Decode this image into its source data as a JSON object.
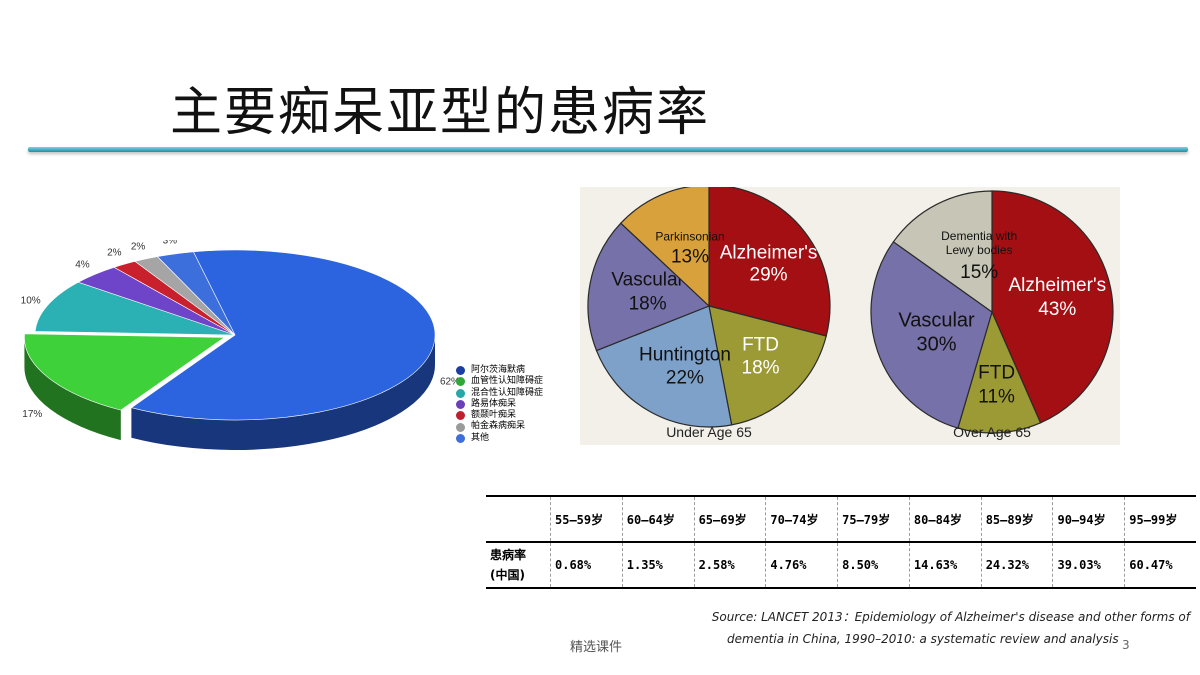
{
  "slide": {
    "title": "主要痴呆亚型的患病率",
    "footer": "精选课件",
    "page_number": "3"
  },
  "legend": [
    {
      "label": "阿尔茨海默病",
      "color": "#1b3fa0"
    },
    {
      "label": "血管性认知障碍症",
      "color": "#2fa838"
    },
    {
      "label": "混合性认知障碍症",
      "color": "#27a7a7"
    },
    {
      "label": "路易体痴呆",
      "color": "#6a3fb8"
    },
    {
      "label": "额颞叶痴呆",
      "color": "#c21f2e"
    },
    {
      "label": "帕金森病痴呆",
      "color": "#9a9a9a"
    },
    {
      "label": "其他",
      "color": "#3d6fd6"
    }
  ],
  "chart_data": [
    {
      "type": "pie",
      "title": "",
      "slices": [
        {
          "label": "62%",
          "value": 62,
          "color": "#2c63df"
        },
        {
          "label": "17%",
          "value": 17,
          "color": "#3ed13a"
        },
        {
          "label": "10%",
          "value": 10,
          "color": "#2bb0b4"
        },
        {
          "label": "4%",
          "value": 4,
          "color": "#6e44c8"
        },
        {
          "label": "2%",
          "value": 2,
          "color": "#c8202c"
        },
        {
          "label": "2%",
          "value": 2,
          "color": "#a5a5a5"
        },
        {
          "label": "3%",
          "value": 3,
          "color": "#3c6edc"
        }
      ]
    },
    {
      "type": "pie",
      "title": "Under Age 65",
      "slices": [
        {
          "label": "Alzheimer's",
          "value": 29,
          "color": "#a30f12"
        },
        {
          "label": "FTD",
          "value": 18,
          "color": "#9c9a35"
        },
        {
          "label": "Huntington",
          "value": 22,
          "color": "#7ea1c9"
        },
        {
          "label": "Vascular",
          "value": 18,
          "color": "#7671a8"
        },
        {
          "label": "Parkinsonian",
          "value": 13,
          "color": "#d9a13c"
        }
      ]
    },
    {
      "type": "pie",
      "title": "Over Age 65",
      "slices": [
        {
          "label": "Alzheimer's",
          "value": 43,
          "color": "#a30f12"
        },
        {
          "label": "FTD",
          "value": 11,
          "color": "#9c9a35"
        },
        {
          "label": "Vascular",
          "value": 30,
          "color": "#7671a8"
        },
        {
          "label": "Dementia with Lewy bodies",
          "value": 15,
          "color": "#c7c6b6"
        }
      ]
    },
    {
      "type": "table",
      "columns": [
        "55—59岁",
        "60—64岁",
        "65—69岁",
        "70—74岁",
        "75—79岁",
        "80—84岁",
        "85—89岁",
        "90—94岁",
        "95—99岁"
      ],
      "row_label": "患病率",
      "row_sublabel": "(中国)",
      "values": [
        "0.68%",
        "1.35%",
        "2.58%",
        "4.76%",
        "8.50%",
        "14.63%",
        "24.32%",
        "39.03%",
        "60.47%"
      ]
    }
  ],
  "source": {
    "line1": "Source: LANCET 2013：Epidemiology of Alzheimer's disease and other forms of",
    "line2": "dementia in China, 1990–2010: a systematic review and analysis"
  }
}
